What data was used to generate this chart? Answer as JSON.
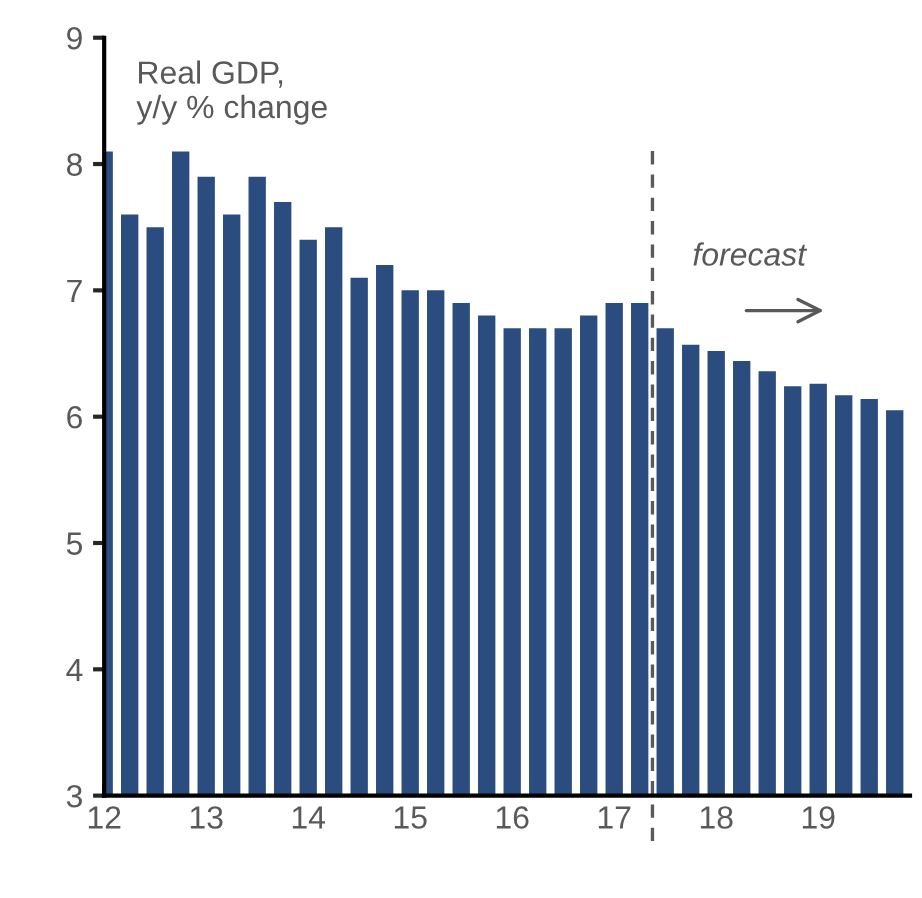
{
  "chart_data": {
    "type": "bar",
    "x": [
      2012.0,
      2012.25,
      2012.5,
      2012.75,
      2013.0,
      2013.25,
      2013.5,
      2013.75,
      2014.0,
      2014.25,
      2014.5,
      2014.75,
      2015.0,
      2015.25,
      2015.5,
      2015.75,
      2016.0,
      2016.25,
      2016.5,
      2016.75,
      2017.0,
      2017.25,
      2017.5,
      2017.75,
      2018.0,
      2018.25,
      2018.5,
      2018.75,
      2019.0,
      2019.25,
      2019.5,
      2019.75
    ],
    "series": [
      {
        "color": "#2b4c7e",
        "values": [
          8.1,
          7.6,
          7.5,
          8.1,
          7.9,
          7.6,
          7.9,
          7.7,
          7.4,
          7.5,
          7.1,
          7.2,
          7.0,
          7.0,
          6.9,
          6.8,
          6.7,
          6.7,
          6.7,
          6.8,
          6.9,
          6.9,
          6.7,
          6.57,
          6.52,
          6.44,
          6.36,
          6.24,
          6.26,
          6.17,
          6.14,
          6.05
        ]
      }
    ],
    "xlim": [
      2012,
      2019.9
    ],
    "xticks": [
      {
        "value": 2012,
        "label": "12"
      },
      {
        "value": 2013,
        "label": "13"
      },
      {
        "value": 2014,
        "label": "14"
      },
      {
        "value": 2015,
        "label": "15"
      },
      {
        "value": 2016,
        "label": "16"
      },
      {
        "value": 2017,
        "label": "17"
      },
      {
        "value": 2018,
        "label": "18"
      },
      {
        "value": 2019,
        "label": "19"
      }
    ],
    "ylim": [
      3,
      9
    ],
    "yticks": [
      3,
      4,
      5,
      6,
      7,
      8,
      9
    ],
    "ref_lines": [
      {
        "axis": "x",
        "value": 2017.375,
        "color": "#595959",
        "line_style": "dashed"
      }
    ],
    "annotations": [
      "Real GDP,\ny/y % change",
      "forecast"
    ],
    "grid": false,
    "legend": false
  }
}
